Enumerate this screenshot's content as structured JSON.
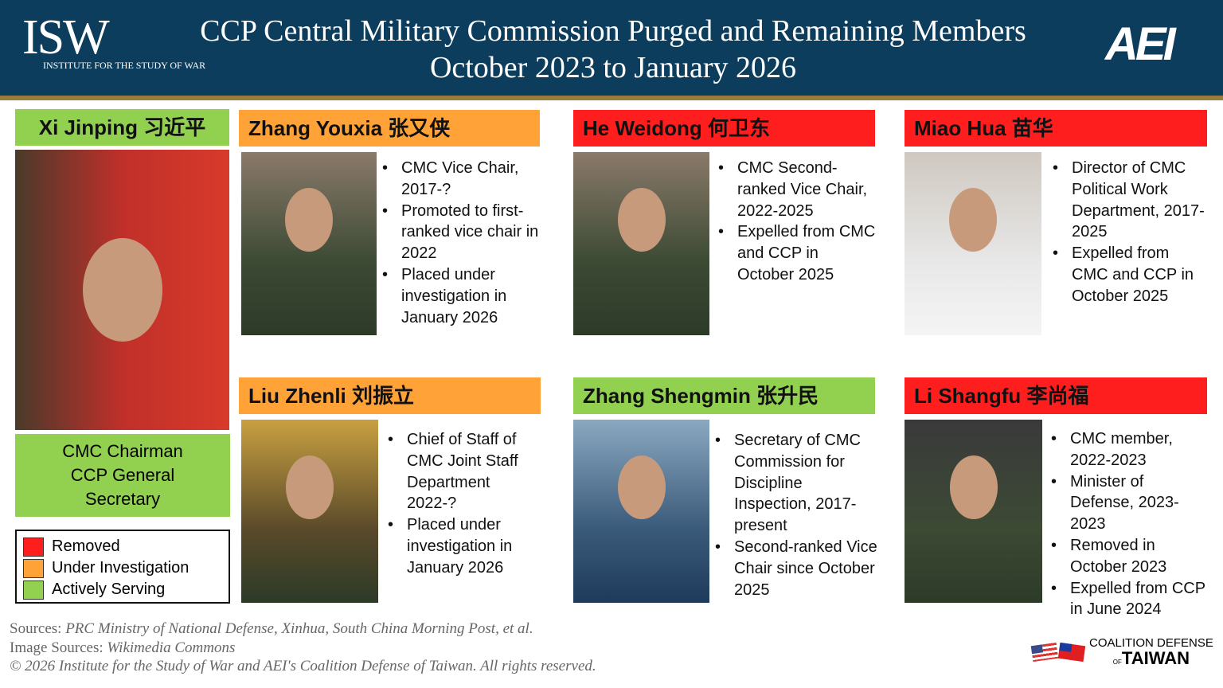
{
  "header": {
    "title_line1": "CCP Central Military Commission Purged and Remaining Members",
    "title_line2": "October 2023 to January 2026",
    "isw_logo": "ISW",
    "isw_sub": "INSTITUTE FOR THE STUDY OF WAR",
    "aei_logo": "AEI",
    "bg": "#0c3d5c"
  },
  "status_colors": {
    "removed": "#ff1e1e",
    "under_investigation": "#ffa238",
    "actively_serving": "#92d050"
  },
  "chairman": {
    "name": "Xi Jinping 习近平",
    "status": "actively_serving",
    "role": [
      "CMC Chairman",
      "CCP General",
      "Secretary"
    ]
  },
  "members": [
    {
      "name": "Zhang Youxia 张又侠",
      "status": "under_investigation",
      "bullets": [
        "CMC Vice Chair, 2017-?",
        "Promoted to first-ranked vice chair in 2022",
        "Placed under investigation in January 2026"
      ]
    },
    {
      "name": "He Weidong 何卫东",
      "status": "removed",
      "bullets": [
        "CMC Second-ranked Vice Chair, 2022-2025",
        "Expelled from CMC and CCP in October 2025"
      ]
    },
    {
      "name": "Miao Hua 苗华",
      "status": "removed",
      "bullets": [
        "Director of CMC Political Work Department, 2017-2025",
        "Expelled from CMC and CCP in October 2025"
      ]
    },
    {
      "name": "Liu Zhenli 刘振立",
      "status": "under_investigation",
      "bullets": [
        "Chief of Staff of CMC Joint Staff Department 2022-?",
        "Placed under investigation in January 2026"
      ]
    },
    {
      "name": "Zhang Shengmin 张升民",
      "status": "actively_serving",
      "bullets": [
        "Secretary of CMC Commission for Discipline Inspection, 2017-present",
        "Second-ranked Vice Chair since October 2025"
      ]
    },
    {
      "name": "Li Shangfu 李尚福",
      "status": "removed",
      "bullets": [
        "CMC member, 2022-2023",
        "Minister of Defense, 2023-2023",
        "Removed in October 2023",
        "Expelled from CCP in June 2024"
      ]
    }
  ],
  "legend": [
    "Removed",
    "Under Investigation",
    "Actively Serving"
  ],
  "footer": {
    "sources_label": "Sources: ",
    "sources": "PRC Ministry of National Defense, Xinhua, South China Morning Post, et al.",
    "image_sources_label": "Image Sources: ",
    "image_sources": "Wikimedia Commons",
    "copyright": "© 2026 Institute for the Study of War and AEI's Coalition Defense of Taiwan. All rights reserved.",
    "cdt_line1": "COALITION DEFENSE",
    "cdt_of": "OF",
    "cdt_line2": "TAIWAN"
  }
}
